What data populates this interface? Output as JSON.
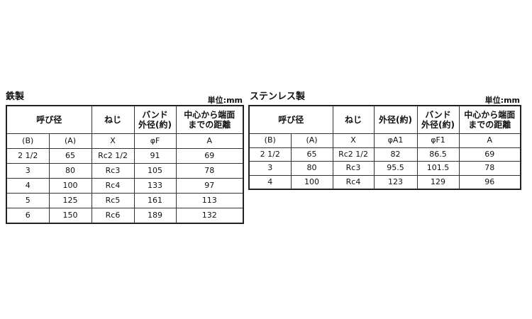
{
  "iron": {
    "title": "鉄製",
    "unit": "単位:mm",
    "headers": [
      "呼び径",
      "ねじ",
      "バンド\n外径(約)",
      "中心から端面\nまでの距離"
    ],
    "subheaders": [
      "(B)",
      "(A)",
      "X",
      "φF",
      "A"
    ],
    "rows": [
      [
        "2 1/2",
        "65",
        "Rc2 1/2",
        "91",
        "69"
      ],
      [
        "3",
        "80",
        "Rc3",
        "105",
        "78"
      ],
      [
        "4",
        "100",
        "Rc4",
        "133",
        "97"
      ],
      [
        "5",
        "125",
        "Rc5",
        "161",
        "113"
      ],
      [
        "6",
        "150",
        "Rc6",
        "189",
        "132"
      ]
    ]
  },
  "stainless": {
    "title": "ステンレス製",
    "unit": "単位:mm",
    "headers": [
      "呼び径",
      "ねじ",
      "外径(約)",
      "バンド\n外径(約)",
      "中心から端面\nまでの距離"
    ],
    "subheaders": [
      "(B)",
      "(A)",
      "X",
      "φA1",
      "φF1",
      "A"
    ],
    "rows": [
      [
        "2 1/2",
        "65",
        "Rc2 1/2",
        "82",
        "86.5",
        "69"
      ],
      [
        "3",
        "80",
        "Rc3",
        "95.5",
        "101.5",
        "78"
      ],
      [
        "4",
        "100",
        "Rc4",
        "123",
        "129",
        "96"
      ]
    ]
  }
}
